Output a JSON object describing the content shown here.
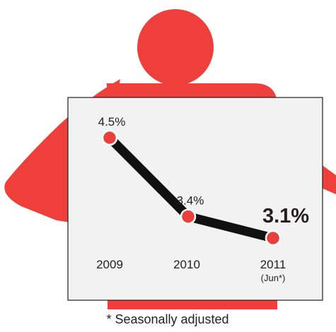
{
  "colors": {
    "figure": "#ee3f3b",
    "board_fill": "#f2f2f3",
    "board_stroke": "#231f20",
    "line": "#111111",
    "marker": "#e8403c",
    "text": "#231f20"
  },
  "chart_data": {
    "type": "line",
    "categories": [
      "2009",
      "2010",
      "2011"
    ],
    "category_sublabels": [
      "",
      "",
      "(Jun*)"
    ],
    "values": [
      4.5,
      3.4,
      3.1
    ],
    "data_labels": [
      "4.5%",
      "3.4%",
      "3.1%"
    ],
    "highlighted_index": 2,
    "title": "",
    "xlabel": "",
    "ylabel": "",
    "ylim": [
      3.1,
      4.5
    ],
    "grid": false,
    "footnote": "* Seasonally adjusted"
  }
}
